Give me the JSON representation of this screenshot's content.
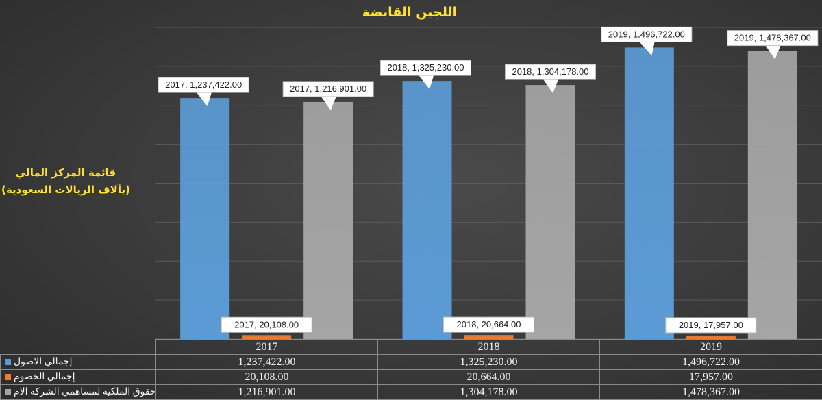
{
  "chart_data": {
    "type": "bar",
    "title": "اللجين القابضة",
    "ylabel": "قائمة المركز المالي (بآلاف الريالات السعودية)",
    "ylabel_lines": [
      "قائمة المركز المالي",
      "(بآلاف الريالات السعودية)"
    ],
    "categories": [
      "2017",
      "2018",
      "2019"
    ],
    "ylim": [
      0,
      1600000
    ],
    "gridlines": true,
    "legend": "data-table",
    "series": [
      {
        "name": "إجمالي الاصول",
        "color": "#5b9bd5",
        "values": [
          1237422,
          1325230,
          1496722
        ]
      },
      {
        "name": "إجمالي الخصوم",
        "color": "#ed7d31",
        "values": [
          20108,
          20664,
          17957
        ]
      },
      {
        "name": "حقوق الملكية لمساهمي الشركة الام",
        "color": "#a5a5a5",
        "values": [
          1216901,
          1304178,
          1478367
        ]
      }
    ],
    "data_labels": [
      [
        "2017, 1,237,422.00",
        "2018, 1,325,230.00",
        "2019, 1,496,722.00"
      ],
      [
        "2017, 20,108.00",
        "2018, 20,664.00",
        "2019, 17,957.00"
      ],
      [
        "2017, 1,216,901.00",
        "2018, 1,304,178.00",
        "2019, 1,478,367.00"
      ]
    ],
    "table": {
      "headers": [
        "2017",
        "2018",
        "2019"
      ],
      "rows": [
        {
          "label": "إجمالي الاصول",
          "cells": [
            "1,237,422.00",
            "1,325,230.00",
            "1,496,722.00"
          ]
        },
        {
          "label": "إجمالي الخصوم",
          "cells": [
            "20,108.00",
            "20,664.00",
            "17,957.00"
          ]
        },
        {
          "label": "حقوق الملكية لمساهمي الشركة الام",
          "cells": [
            "1,216,901.00",
            "1,304,178.00",
            "1,478,367.00"
          ]
        }
      ]
    }
  }
}
